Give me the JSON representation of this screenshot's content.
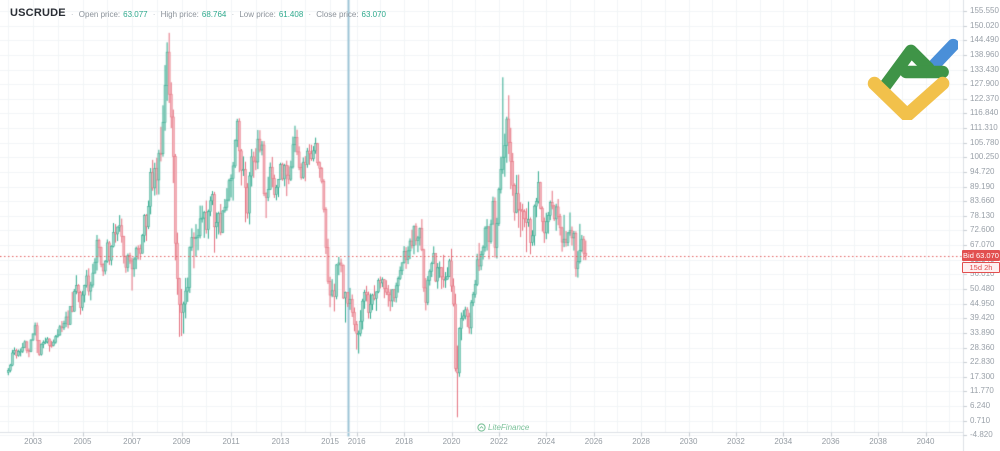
{
  "header": {
    "symbol": "USCRUDE",
    "ohlc": [
      {
        "name": "open",
        "label": "Open price:",
        "value": "63.077"
      },
      {
        "name": "high",
        "label": "High price:",
        "value": "68.764"
      },
      {
        "name": "low",
        "label": "Low price:",
        "value": "61.408"
      },
      {
        "name": "close",
        "label": "Close price:",
        "value": "63.070"
      }
    ]
  },
  "bid": {
    "label": "Bid",
    "value": "63.070",
    "countdown": "15d 2h"
  },
  "watermark": {
    "text": "LiteFinance"
  },
  "colors": {
    "up_line": "#2fa98d",
    "up_fill": "#9ed4c7",
    "down_line": "#e4707e",
    "down_fill": "#f3b3bb",
    "bid_line": "#e25f5f",
    "vline": "#9cc4d6",
    "grid": "#f2f5f7",
    "axis_line": "#dde1e6",
    "tick_mark": "#c7ccd2",
    "tick_text": "#9aa1a9",
    "logo_green": "#3f9447",
    "logo_blue": "#4a8fd8",
    "logo_yellow": "#f2c14b"
  },
  "chart_data": {
    "type": "candlestick",
    "instrument": "USCRUDE",
    "timeframe": "monthly",
    "start_month": "2002-01",
    "first_open": 19.0,
    "closes": [
      19.7,
      21.7,
      26.3,
      27.3,
      25.3,
      26.9,
      27.0,
      28.4,
      30.5,
      27.2,
      26.9,
      31.2,
      33.5,
      36.6,
      31.0,
      25.8,
      29.6,
      30.2,
      30.5,
      31.6,
      29.2,
      29.1,
      30.4,
      32.5,
      33.1,
      36.2,
      35.8,
      37.4,
      39.9,
      37.1,
      43.8,
      42.1,
      49.6,
      51.8,
      49.1,
      43.5,
      48.2,
      51.8,
      55.4,
      49.7,
      52.0,
      56.5,
      60.6,
      68.9,
      66.2,
      59.8,
      57.3,
      61.0,
      67.9,
      61.4,
      66.6,
      71.9,
      71.3,
      73.9,
      74.4,
      70.3,
      62.9,
      58.7,
      63.1,
      61.1,
      58.1,
      61.8,
      65.9,
      65.7,
      64.0,
      70.7,
      78.2,
      74.0,
      81.7,
      94.5,
      88.7,
      96.0,
      91.7,
      101.8,
      101.6,
      113.5,
      127.4,
      140.0,
      124.1,
      115.5,
      100.6,
      67.8,
      54.4,
      44.6,
      41.7,
      44.8,
      49.7,
      51.1,
      66.3,
      69.9,
      69.5,
      70.0,
      70.6,
      77.0,
      77.3,
      79.4,
      72.9,
      79.7,
      83.8,
      86.2,
      74.0,
      75.6,
      79.0,
      71.9,
      80.0,
      81.4,
      84.1,
      91.4,
      92.2,
      97.0,
      106.7,
      113.9,
      102.7,
      95.4,
      95.7,
      88.8,
      79.2,
      93.2,
      100.4,
      98.8,
      98.5,
      107.1,
      103.0,
      104.9,
      86.5,
      85.0,
      88.1,
      96.5,
      92.2,
      86.2,
      88.9,
      91.8,
      97.5,
      92.1,
      97.2,
      93.5,
      92.0,
      96.6,
      105.0,
      107.7,
      102.3,
      96.4,
      92.7,
      98.4,
      97.5,
      102.6,
      101.6,
      99.7,
      102.7,
      105.4,
      98.2,
      96.0,
      91.2,
      80.5,
      66.2,
      53.3,
      48.2,
      49.8,
      47.6,
      59.6,
      60.3,
      59.5,
      47.1,
      49.2,
      45.1,
      46.6,
      41.7,
      37.0,
      33.6,
      33.7,
      38.3,
      45.9,
      49.1,
      48.3,
      41.6,
      44.7,
      48.2,
      46.9,
      49.4,
      53.7,
      52.8,
      54.0,
      50.6,
      49.3,
      48.3,
      46.0,
      50.2,
      47.2,
      51.7,
      54.4,
      57.4,
      60.4,
      64.7,
      61.6,
      64.9,
      68.6,
      67.0,
      74.2,
      68.8,
      69.8,
      73.3,
      65.3,
      50.9,
      45.4,
      53.8,
      57.2,
      60.1,
      63.9,
      53.5,
      58.5,
      58.6,
      55.1,
      54.1,
      54.2,
      55.2,
      61.1,
      51.6,
      44.8,
      20.5,
      18.8,
      35.5,
      39.3,
      40.3,
      42.6,
      40.2,
      35.8,
      45.3,
      48.5,
      52.2,
      61.5,
      59.2,
      63.6,
      66.3,
      73.5,
      74.0,
      68.5,
      75.0,
      83.6,
      66.2,
      75.2,
      88.2,
      95.7,
      100.3,
      104.7,
      114.7,
      105.8,
      98.6,
      89.6,
      79.5,
      86.5,
      80.6,
      80.3,
      79.7,
      77.0,
      75.7,
      76.8,
      68.1,
      70.6,
      81.8,
      83.6,
      90.8,
      81.0,
      76.0,
      71.7,
      75.9,
      78.3,
      83.2,
      81.9,
      77.0,
      81.5,
      77.9,
      73.6,
      68.2,
      69.3,
      68.0,
      71.7,
      72.5,
      69.8,
      71.5,
      58.2,
      60.8,
      65.1,
      69.3,
      64.0,
      63.1
    ],
    "highs": [
      20.6,
      22.2,
      27.5,
      28.4,
      27.9,
      27.6,
      28.0,
      30.1,
      31.1,
      30.9,
      28.0,
      31.5,
      33.7,
      37.8,
      37.8,
      31.2,
      29.9,
      31.1,
      32.1,
      32.3,
      31.8,
      30.9,
      31.4,
      33.1,
      35.3,
      36.9,
      38.4,
      38.5,
      41.9,
      42.4,
      43.9,
      49.4,
      50.5,
      55.7,
      52.3,
      49.8,
      49.8,
      52.1,
      57.7,
      58.3,
      53.2,
      60.0,
      62.1,
      70.9,
      69.5,
      66.5,
      60.2,
      61.4,
      69.2,
      68.6,
      67.0,
      75.4,
      75.0,
      74.1,
      78.4,
      77.1,
      70.6,
      63.0,
      63.9,
      64.2,
      62.3,
      62.5,
      66.5,
      67.0,
      67.3,
      71.3,
      78.8,
      78.8,
      83.9,
      96.2,
      99.3,
      98.2,
      100.1,
      103.1,
      111.8,
      119.9,
      135.1,
      143.7,
      147.3,
      128.6,
      118.3,
      101.5,
      71.8,
      54.7,
      50.5,
      45.7,
      54.7,
      54.8,
      66.5,
      73.4,
      71.9,
      75.0,
      73.2,
      82.0,
      82.0,
      80.0,
      83.9,
      80.5,
      85.5,
      87.5,
      87.2,
      79.4,
      79.7,
      82.6,
      80.3,
      84.5,
      88.6,
      92.1,
      93.8,
      98.5,
      107.0,
      114.8,
      115.0,
      103.4,
      100.6,
      98.6,
      90.5,
      94.7,
      103.4,
      102.4,
      103.7,
      110.6,
      110.5,
      106.4,
      106.4,
      87.0,
      92.9,
      98.3,
      100.4,
      93.7,
      89.8,
      92.0,
      98.2,
      98.2,
      97.8,
      99.0,
      97.2,
      99.0,
      108.1,
      112.2,
      110.7,
      104.4,
      98.0,
      100.2,
      100.7,
      103.8,
      105.2,
      105.0,
      104.5,
      107.7,
      105.7,
      98.7,
      96.6,
      92.0,
      81.4,
      69.5,
      55.1,
      54.2,
      52.5,
      59.9,
      62.6,
      62.0,
      59.7,
      49.5,
      49.3,
      50.9,
      48.4,
      43.5,
      38.4,
      34.8,
      42.5,
      46.8,
      50.2,
      51.7,
      49.5,
      48.8,
      48.7,
      51.9,
      49.6,
      54.5,
      55.2,
      54.9,
      54.2,
      53.8,
      52.0,
      50.4,
      50.4,
      50.5,
      52.9,
      55.2,
      59.0,
      60.5,
      66.7,
      66.3,
      66.6,
      69.6,
      72.9,
      74.5,
      75.3,
      70.5,
      73.7,
      76.9,
      65.7,
      54.6,
      55.4,
      57.9,
      60.8,
      66.6,
      63.9,
      60.3,
      60.9,
      58.8,
      63.4,
      56.9,
      58.7,
      61.9,
      65.7,
      54.5,
      48.7,
      29.1,
      36.0,
      41.6,
      42.5,
      43.8,
      43.6,
      41.5,
      46.3,
      49.4,
      53.9,
      63.8,
      67.9,
      64.9,
      67.0,
      74.2,
      76.9,
      74.2,
      76.7,
      85.4,
      85.1,
      77.4,
      88.8,
      100.5,
      130.5,
      109.2,
      115.6,
      123.7,
      111.4,
      101.9,
      90.4,
      93.6,
      93.7,
      83.3,
      82.7,
      80.6,
      81.0,
      83.5,
      77.5,
      72.7,
      82.4,
      84.9,
      95.0,
      91.0,
      81.7,
      77.5,
      79.3,
      79.6,
      83.9,
      87.6,
      82.3,
      82.7,
      84.5,
      78.9,
      74.0,
      78.5,
      72.4,
      72.0,
      79.4,
      74.1,
      72.4,
      72.3,
      64.8,
      75.1,
      70.9,
      70.5,
      68.8
    ],
    "lows": [
      17.9,
      19.0,
      21.3,
      25.6,
      24.2,
      24.9,
      25.0,
      26.3,
      28.2,
      26.2,
      24.7,
      26.6,
      30.9,
      32.9,
      26.3,
      25.2,
      25.3,
      28.1,
      29.7,
      29.9,
      26.8,
      28.3,
      28.8,
      29.8,
      32.1,
      32.8,
      34.2,
      35.0,
      36.1,
      35.6,
      36.9,
      41.7,
      41.9,
      48.5,
      45.5,
      40.8,
      42.3,
      45.4,
      51.0,
      48.0,
      46.2,
      51.0,
      56.3,
      57.5,
      62.5,
      58.7,
      55.4,
      56.0,
      60.4,
      59.6,
      59.4,
      66.2,
      68.0,
      68.6,
      72.1,
      68.0,
      60.1,
      56.6,
      57.0,
      60.0,
      49.9,
      55.1,
      58.0,
      61.6,
      61.5,
      63.9,
      68.1,
      68.6,
      73.1,
      78.7,
      87.6,
      85.8,
      86.1,
      86.2,
      98.7,
      100.5,
      110.3,
      121.6,
      120.8,
      111.3,
      90.5,
      61.3,
      48.3,
      32.4,
      32.7,
      33.6,
      39.4,
      45.6,
      49.0,
      64.9,
      58.3,
      62.7,
      65.1,
      69.6,
      75.6,
      69.8,
      71.4,
      69.5,
      78.0,
      82.2,
      64.2,
      69.5,
      71.1,
      70.8,
      71.6,
      79.3,
      80.1,
      83.6,
      85.1,
      83.9,
      96.2,
      104.1,
      94.6,
      89.6,
      93.2,
      75.7,
      77.1,
      74.9,
      89.2,
      92.5,
      95.4,
      95.8,
      102.1,
      101.0,
      85.6,
      77.3,
      83.7,
      87.9,
      88.9,
      84.9,
      84.0,
      85.2,
      92.7,
      91.4,
      89.3,
      85.6,
      90.1,
      91.3,
      96.0,
      102.2,
      101.1,
      95.4,
      91.8,
      92.1,
      91.2,
      96.3,
      97.4,
      98.9,
      98.7,
      101.6,
      97.1,
      92.5,
      90.4,
      79.4,
      63.7,
      52.4,
      43.6,
      47.4,
      42.0,
      46.6,
      55.7,
      56.8,
      46.7,
      37.8,
      43.7,
      42.6,
      39.9,
      34.5,
      27.6,
      26.1,
      32.6,
      35.2,
      43.0,
      45.8,
      39.3,
      39.2,
      42.5,
      46.2,
      42.2,
      48.9,
      50.7,
      51.2,
      47.0,
      48.2,
      43.8,
      42.1,
      43.7,
      45.6,
      45.4,
      49.1,
      53.9,
      55.8,
      60.1,
      58.1,
      59.9,
      61.8,
      65.8,
      63.6,
      67.0,
      64.4,
      66.9,
      64.8,
      49.4,
      42.4,
      44.4,
      51.8,
      55.0,
      60.1,
      53.1,
      50.6,
      54.7,
      50.5,
      51.0,
      50.9,
      54.0,
      55.0,
      49.4,
      43.9,
      19.3,
      2.0,
      17.3,
      31.1,
      38.5,
      39.0,
      36.1,
      33.6,
      33.4,
      44.0,
      47.2,
      51.6,
      57.3,
      57.6,
      61.6,
      64.6,
      65.0,
      61.7,
      67.6,
      74.9,
      62.4,
      62.0,
      74.3,
      86.6,
      94.0,
      92.9,
      98.2,
      101.5,
      88.2,
      85.7,
      76.3,
      79.1,
      73.6,
      70.1,
      72.5,
      73.8,
      64.4,
      74.0,
      63.6,
      66.8,
      66.9,
      77.6,
      82.8,
      80.6,
      72.2,
      67.9,
      69.3,
      71.4,
      76.5,
      80.6,
      76.2,
      72.5,
      74.6,
      70.7,
      64.6,
      66.3,
      66.5,
      66.7,
      70.6,
      66.9,
      65.0,
      55.1,
      54.8,
      60.1,
      64.5,
      61.4,
      61.4
    ],
    "y_axis": {
      "max_tick": 155.55,
      "min_tick": -4.82,
      "tick_step": 5.53,
      "decimals": 3
    },
    "x_axis": {
      "tick_years": [
        2003,
        2005,
        2007,
        2009,
        2011,
        2013,
        2015,
        2016,
        2018,
        2020,
        2022,
        2024,
        2026,
        2028,
        2030,
        2032,
        2034,
        2036,
        2038,
        2040
      ]
    },
    "bid_price": 63.07,
    "marker_vline": {
      "position": "2015-09"
    }
  }
}
